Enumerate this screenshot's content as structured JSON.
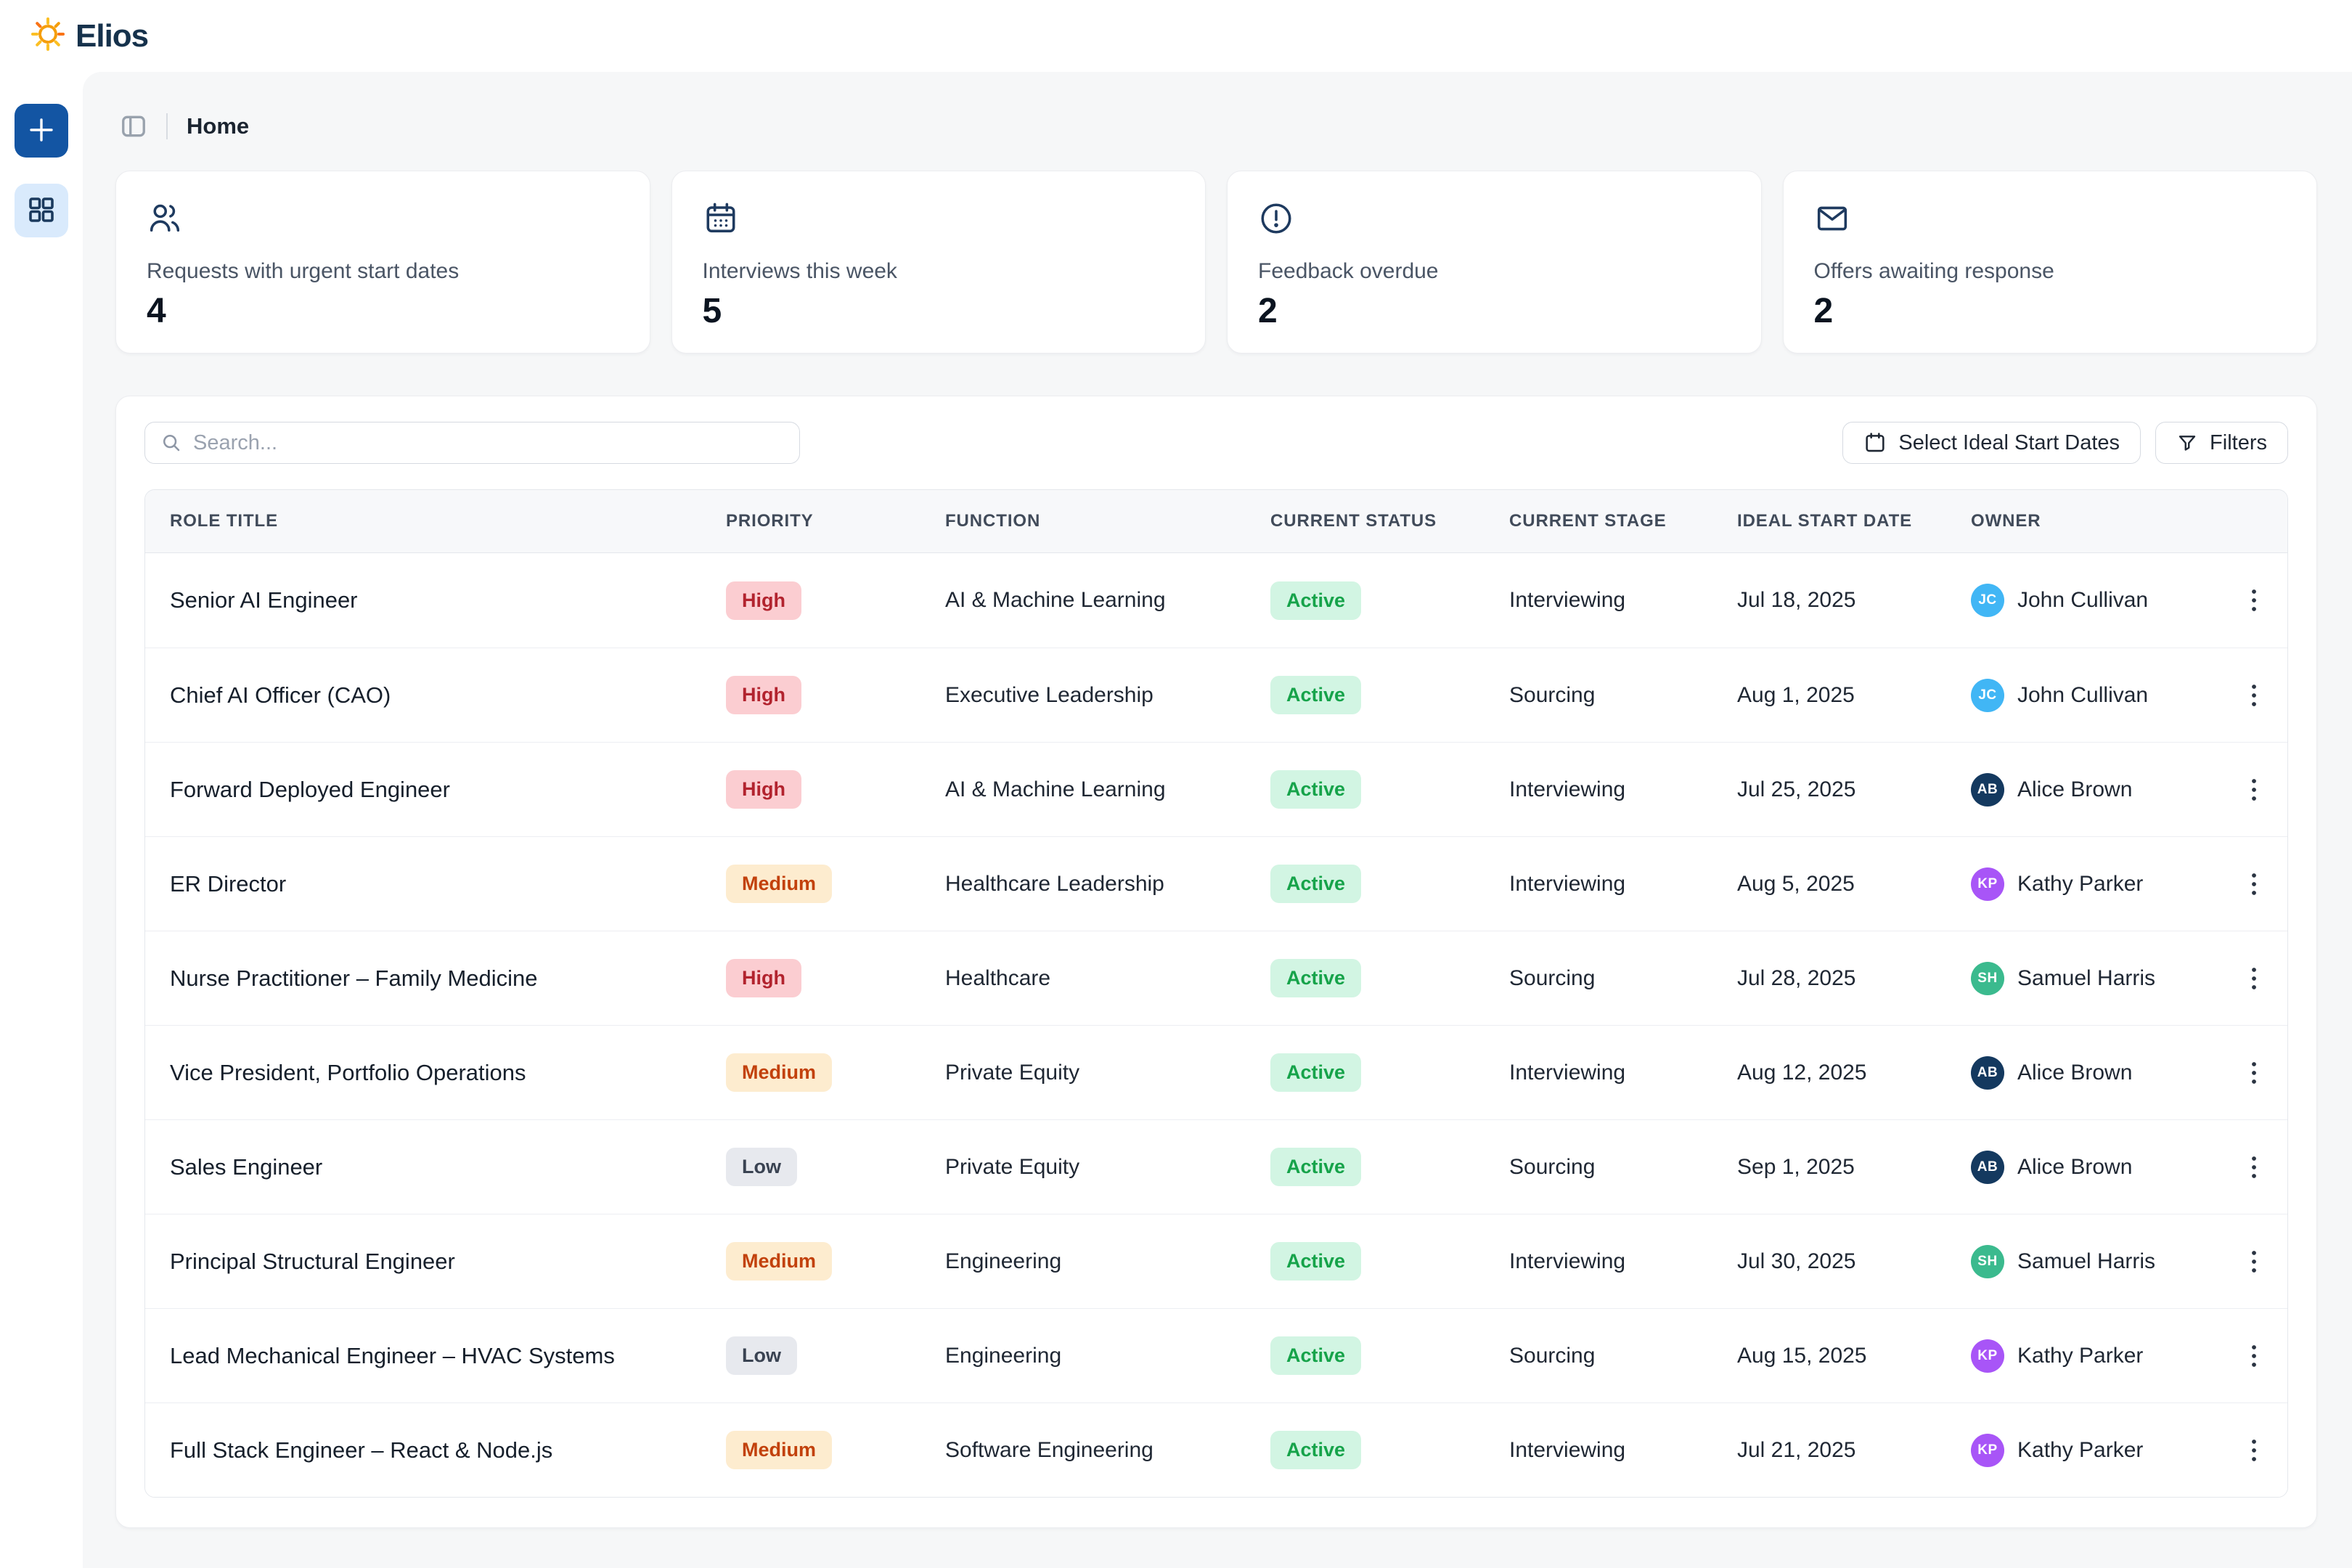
{
  "brand": {
    "name": "Elios"
  },
  "breadcrumb": {
    "page": "Home"
  },
  "toolbar": {
    "search_placeholder": "Search...",
    "select_dates_label": "Select Ideal Start Dates",
    "filters_label": "Filters"
  },
  "stats": [
    {
      "icon": "users-icon",
      "label": "Requests with urgent start dates",
      "value": "4"
    },
    {
      "icon": "calendar-icon",
      "label": "Interviews this week",
      "value": "5"
    },
    {
      "icon": "alert-circle-icon",
      "label": "Feedback overdue",
      "value": "2"
    },
    {
      "icon": "mail-icon",
      "label": "Offers awaiting response",
      "value": "2"
    }
  ],
  "table": {
    "columns": [
      "Role Title",
      "Priority",
      "Function",
      "Current Status",
      "Current Stage",
      "Ideal Start Date",
      "Owner"
    ],
    "rows": [
      {
        "role": "Senior AI Engineer",
        "priority": "High",
        "function": "AI & Machine Learning",
        "status": "Active",
        "stage": "Interviewing",
        "start_date": "Jul 18, 2025",
        "owner": "John Cullivan",
        "owner_initials": "JC",
        "avatar_color": "#41b6f5"
      },
      {
        "role": "Chief AI Officer (CAO)",
        "priority": "High",
        "function": "Executive Leadership",
        "status": "Active",
        "stage": "Sourcing",
        "start_date": "Aug 1, 2025",
        "owner": "John Cullivan",
        "owner_initials": "JC",
        "avatar_color": "#41b6f5"
      },
      {
        "role": "Forward Deployed Engineer",
        "priority": "High",
        "function": "AI & Machine Learning",
        "status": "Active",
        "stage": "Interviewing",
        "start_date": "Jul 25, 2025",
        "owner": "Alice Brown",
        "owner_initials": "AB",
        "avatar_color": "#14395f"
      },
      {
        "role": "ER Director",
        "priority": "Medium",
        "function": "Healthcare Leadership",
        "status": "Active",
        "stage": "Interviewing",
        "start_date": "Aug 5, 2025",
        "owner": "Kathy Parker",
        "owner_initials": "KP",
        "avatar_color": "#a855f7"
      },
      {
        "role": "Nurse Practitioner – Family Medicine",
        "priority": "High",
        "function": "Healthcare",
        "status": "Active",
        "stage": "Sourcing",
        "start_date": "Jul 28, 2025",
        "owner": "Samuel Harris",
        "owner_initials": "SH",
        "avatar_color": "#3bba8e"
      },
      {
        "role": "Vice President, Portfolio Operations",
        "priority": "Medium",
        "function": "Private Equity",
        "status": "Active",
        "stage": "Interviewing",
        "start_date": "Aug 12, 2025",
        "owner": "Alice Brown",
        "owner_initials": "AB",
        "avatar_color": "#14395f"
      },
      {
        "role": "Sales Engineer",
        "priority": "Low",
        "function": "Private Equity",
        "status": "Active",
        "stage": "Sourcing",
        "start_date": "Sep 1, 2025",
        "owner": "Alice Brown",
        "owner_initials": "AB",
        "avatar_color": "#14395f"
      },
      {
        "role": "Principal Structural Engineer",
        "priority": "Medium",
        "function": "Engineering",
        "status": "Active",
        "stage": "Interviewing",
        "start_date": "Jul 30, 2025",
        "owner": "Samuel Harris",
        "owner_initials": "SH",
        "avatar_color": "#3bba8e"
      },
      {
        "role": "Lead Mechanical Engineer – HVAC Systems",
        "priority": "Low",
        "function": "Engineering",
        "status": "Active",
        "stage": "Sourcing",
        "start_date": "Aug 15, 2025",
        "owner": "Kathy Parker",
        "owner_initials": "KP",
        "avatar_color": "#a855f7"
      },
      {
        "role": "Full Stack Engineer – React & Node.js",
        "priority": "Medium",
        "function": "Software Engineering",
        "status": "Active",
        "stage": "Interviewing",
        "start_date": "Jul 21, 2025",
        "owner": "Kathy Parker",
        "owner_initials": "KP",
        "avatar_color": "#a855f7"
      }
    ]
  },
  "colors": {
    "brand_blue": "#1355a3",
    "brand_blue_light": "#d9eafc",
    "logo_orange": "#f59e0b",
    "priority": {
      "High": {
        "bg": "#fbcdd1",
        "text": "#b2232e"
      },
      "Medium": {
        "bg": "#fdeccf",
        "text": "#c2410c"
      },
      "Low": {
        "bg": "#e7e9ee",
        "text": "#3a4352"
      }
    },
    "status": {
      "Active": {
        "bg": "#d2f5e3",
        "text": "#16a34a"
      }
    },
    "avatars": {
      "JC": "#41b6f5",
      "AB": "#14395f",
      "KP": "#a855f7",
      "SH": "#3bba8e"
    }
  }
}
